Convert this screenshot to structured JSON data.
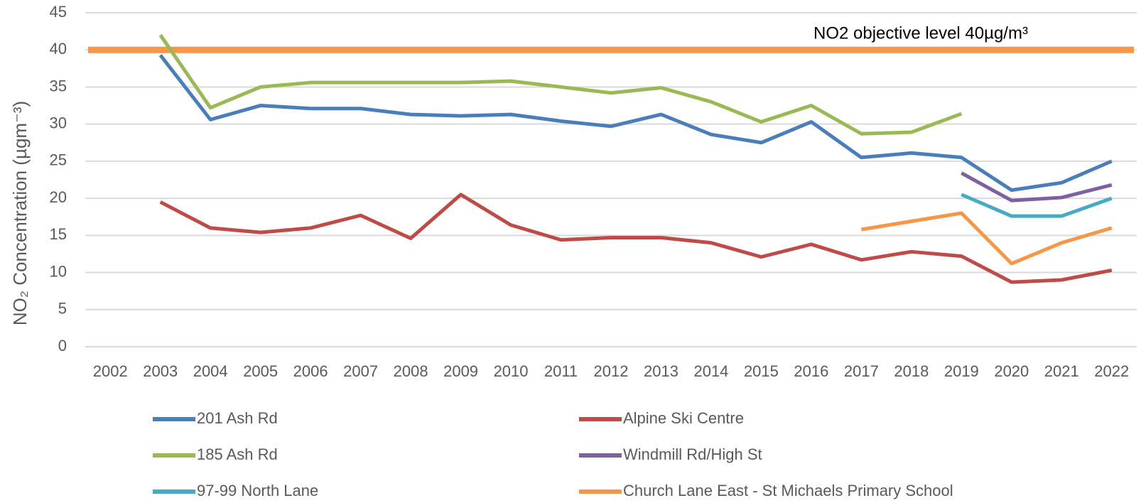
{
  "chart_data": {
    "type": "line",
    "y_axis_label": "NO₂ Concentration (µgm⁻³)",
    "categories": [
      "2002",
      "2003",
      "2004",
      "2005",
      "2006",
      "2007",
      "2008",
      "2009",
      "2010",
      "2011",
      "2012",
      "2013",
      "2014",
      "2015",
      "2016",
      "2017",
      "2018",
      "2019",
      "2020",
      "2021",
      "2022"
    ],
    "ylim": [
      0,
      45
    ],
    "yticks": [
      0,
      5,
      10,
      15,
      20,
      25,
      30,
      35,
      40,
      45
    ],
    "grid": true,
    "reference_line": {
      "value": 40,
      "label": "NO2 objective level 40µg/m³",
      "color": "#f79646"
    },
    "series": [
      {
        "name": "201 Ash Rd",
        "color": "#4a7ebb",
        "values": [
          null,
          39.3,
          30.6,
          32.5,
          32.1,
          32.1,
          31.3,
          31.1,
          31.3,
          30.4,
          29.7,
          31.3,
          28.6,
          27.5,
          30.3,
          25.5,
          26.1,
          25.5,
          21.1,
          22.1,
          25.0
        ]
      },
      {
        "name": "Alpine Ski Centre",
        "color": "#be4b48",
        "values": [
          null,
          19.5,
          16.0,
          15.4,
          16.0,
          17.7,
          14.6,
          20.5,
          16.4,
          14.4,
          14.7,
          14.7,
          14.0,
          12.1,
          13.8,
          11.7,
          12.8,
          12.2,
          8.7,
          9.0,
          10.3
        ]
      },
      {
        "name": "185 Ash Rd",
        "color": "#98b954",
        "values": [
          null,
          42.0,
          32.2,
          35.0,
          35.6,
          35.6,
          35.6,
          35.6,
          35.8,
          35.0,
          34.2,
          34.9,
          33.0,
          30.3,
          32.5,
          28.7,
          28.9,
          31.4,
          null,
          null,
          null
        ]
      },
      {
        "name": "Windmill Rd/High St",
        "color": "#7d60a0",
        "values": [
          null,
          null,
          null,
          null,
          null,
          null,
          null,
          null,
          null,
          null,
          null,
          null,
          null,
          null,
          null,
          null,
          null,
          23.4,
          19.7,
          20.1,
          21.8
        ]
      },
      {
        "name": "97-99 North Lane",
        "color": "#46aac5",
        "values": [
          null,
          null,
          null,
          null,
          null,
          null,
          null,
          null,
          null,
          null,
          null,
          null,
          null,
          null,
          null,
          null,
          null,
          20.5,
          17.6,
          17.6,
          20.0
        ]
      },
      {
        "name": "Church Lane East -  St Michaels Primary School",
        "color": "#f79646",
        "values": [
          null,
          null,
          null,
          null,
          null,
          null,
          null,
          null,
          null,
          null,
          null,
          null,
          null,
          null,
          null,
          15.8,
          16.9,
          18.0,
          11.2,
          14.0,
          16.0
        ]
      }
    ]
  }
}
